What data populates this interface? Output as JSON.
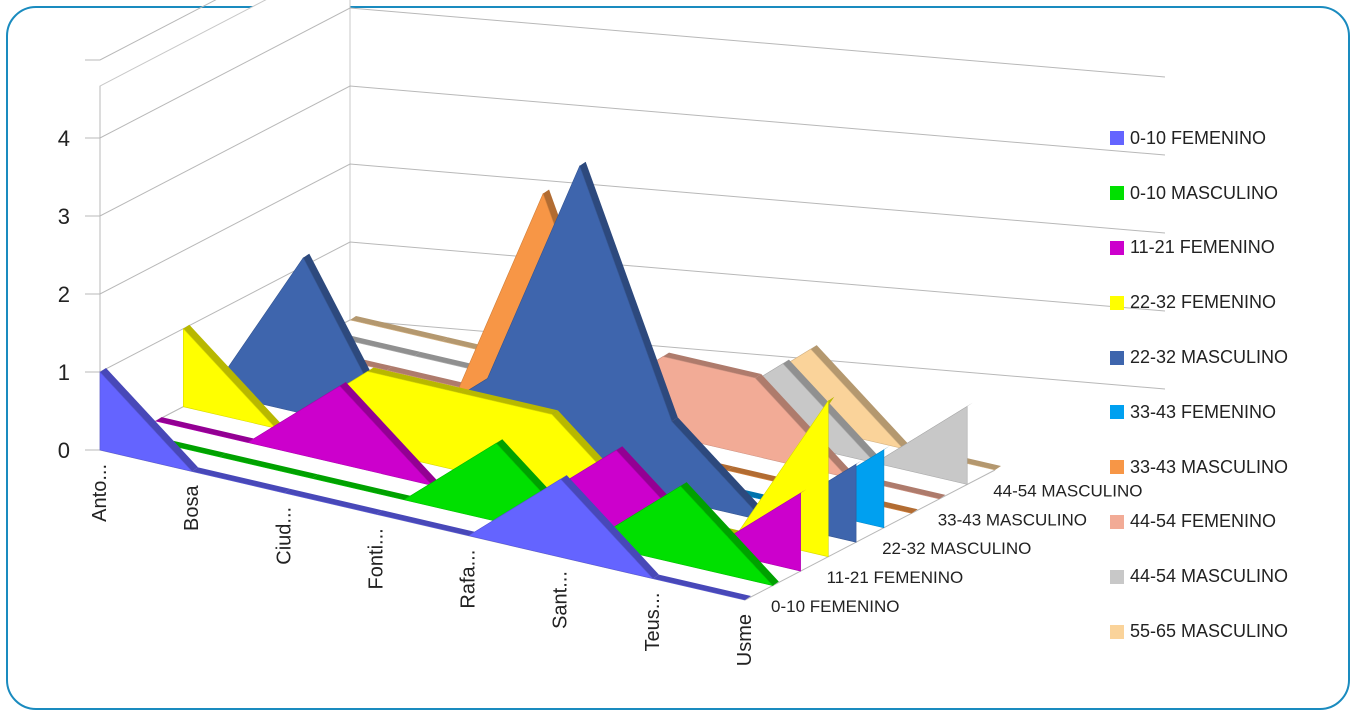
{
  "chart_data": {
    "type": "area",
    "title": "",
    "xlabel": "",
    "ylabel": "",
    "ylim": [
      0,
      4
    ],
    "y_ticks": [
      "0",
      "1",
      "2",
      "3",
      "4"
    ],
    "grid": true,
    "legend_position": "right",
    "categories": [
      "Anto...",
      "Bosa",
      "Ciud...",
      "Fonti...",
      "Rafa...",
      "Sant...",
      "Teus...",
      "Usme"
    ],
    "depth_axis_labels": [
      "0-10 FEMENINO",
      "11-21 FEMENINO",
      "22-32 MASCULINO",
      "33-43 MASCULINO",
      "44-54 MASCULINO"
    ],
    "series": [
      {
        "name": "0-10 FEMENINO",
        "color": "#6464ff",
        "values": [
          1,
          0,
          0,
          0,
          0,
          1,
          0,
          0
        ]
      },
      {
        "name": "0-10 MASCULINO",
        "color": "#00e000",
        "values": [
          0,
          0,
          0,
          0,
          1,
          0,
          1,
          0
        ]
      },
      {
        "name": "11-21 FEMENINO",
        "color": "#cc00cc",
        "values": [
          0,
          0,
          1,
          0,
          0,
          1,
          0,
          1
        ]
      },
      {
        "name": "22-32 FEMENINO",
        "color": "#ffff00",
        "values": [
          1,
          0,
          1,
          1,
          1,
          0,
          0,
          2
        ]
      },
      {
        "name": "22-32 MASCULINO",
        "color": "#3e65ad",
        "values": [
          0,
          2,
          0,
          1,
          4,
          1,
          0,
          1
        ]
      },
      {
        "name": "33-43 FEMENINO",
        "color": "#00a0f0",
        "values": [
          0,
          0,
          0,
          0,
          0,
          0,
          0,
          1
        ]
      },
      {
        "name": "33-43 MASCULINO",
        "color": "#f79646",
        "values": [
          0,
          0,
          0,
          3,
          0,
          0,
          0,
          0
        ]
      },
      {
        "name": "44-54 FEMENINO",
        "color": "#f2ab96",
        "values": [
          0,
          0,
          0,
          0,
          1,
          1,
          0,
          0
        ]
      },
      {
        "name": "44-54 MASCULINO",
        "color": "#c8c8c8",
        "values": [
          0,
          0,
          0,
          0,
          0,
          1,
          0,
          1
        ]
      },
      {
        "name": "55-65 MASCULINO",
        "color": "#fad39a",
        "values": [
          0,
          0,
          0,
          0,
          0,
          1,
          0,
          0
        ]
      }
    ]
  }
}
